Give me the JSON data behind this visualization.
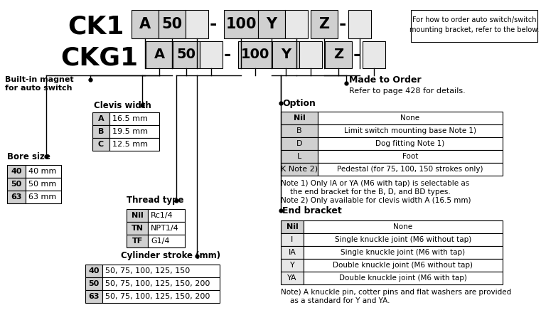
{
  "bg_color": "#ffffff",
  "figsize": [
    7.61,
    4.5
  ],
  "dpi": 100,
  "clevis_title": "Clevis width",
  "clevis_data": [
    [
      "A",
      "16.5 mm"
    ],
    [
      "B",
      "19.5 mm"
    ],
    [
      "C",
      "12.5 mm"
    ]
  ],
  "bore_title": "Bore size",
  "bore_data": [
    [
      "40",
      "40 mm"
    ],
    [
      "50",
      "50 mm"
    ],
    [
      "63",
      "63 mm"
    ]
  ],
  "thread_title": "Thread type",
  "thread_data": [
    [
      "Nil",
      "Rc1/4"
    ],
    [
      "TN",
      "NPT1/4"
    ],
    [
      "TF",
      "G1/4"
    ]
  ],
  "stroke_title": "Cylinder stroke (mm)",
  "stroke_data": [
    [
      "40",
      "50, 75, 100, 125, 150"
    ],
    [
      "50",
      "50, 75, 100, 125, 150, 200"
    ],
    [
      "63",
      "50, 75, 100, 125, 150, 200"
    ]
  ],
  "made_to_order_label": "Made to Order",
  "made_to_order_sub": "Refer to page 428 for details.",
  "option_title": "Option",
  "option_data": [
    [
      "Nil",
      "None"
    ],
    [
      "B",
      "Limit switch mounting base Note 1)"
    ],
    [
      "D",
      "Dog fitting Note 1)"
    ],
    [
      "L",
      "Foot"
    ],
    [
      "K Note 2)",
      "Pedestal (for 75, 100, 150 strokes only)"
    ]
  ],
  "option_note1": "Note 1) Only IA or YA (M6 with tap) is selectable as",
  "option_note1b": "    the end bracket for the B, D, and BD types.",
  "option_note2": "Note 2) Only available for clevis width A (16.5 mm)",
  "end_bracket_title": "End bracket",
  "end_bracket_data": [
    [
      "Nil",
      "None"
    ],
    [
      "I",
      "Single knuckle joint (M6 without tap)"
    ],
    [
      "IA",
      "Single knuckle joint (M6 with tap)"
    ],
    [
      "Y",
      "Double knuckle joint (M6 without tap)"
    ],
    [
      "YA",
      "Double knuckle joint (M6 with tap)"
    ]
  ],
  "end_bracket_note1": "Note) A knuckle pin, cotter pins and flat washers are provided",
  "end_bracket_note2": "    as a standard for Y and YA.",
  "note_box_line1": "For how to order auto switch/switch",
  "note_box_line2": "mounting bracket, refer to the below."
}
